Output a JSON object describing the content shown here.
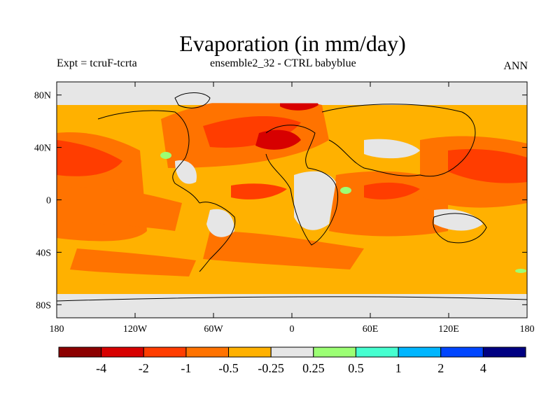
{
  "header": {
    "title": "Evaporation (in mm/day)",
    "left": "Expt = tcruF-tcrta",
    "center": "ensemble2_32 - CTRL babyblue",
    "right": "ANN"
  },
  "map": {
    "lat_ticks": [
      {
        "value": 80,
        "label": "80N"
      },
      {
        "value": 40,
        "label": "40N"
      },
      {
        "value": 0,
        "label": "0"
      },
      {
        "value": -40,
        "label": "40S"
      },
      {
        "value": -80,
        "label": "80S"
      }
    ],
    "lon_ticks": [
      {
        "value": -180,
        "label": "180"
      },
      {
        "value": -120,
        "label": "120W"
      },
      {
        "value": -60,
        "label": "60W"
      },
      {
        "value": 0,
        "label": "0"
      },
      {
        "value": 60,
        "label": "60E"
      },
      {
        "value": 120,
        "label": "120E"
      },
      {
        "value": 180,
        "label": "180"
      }
    ],
    "lon_range": [
      -180,
      180
    ],
    "lat_range": [
      -90,
      90
    ],
    "field_colors": {
      "ocean_base": "#ffb100",
      "strong_neg": "#ff7300",
      "very_strong_neg": "#ff3d00",
      "extreme_neg": "#d70000",
      "neutral": "#e6e6e6",
      "pos": "#9cff74"
    }
  },
  "colorbar": {
    "colors": [
      "#8c0000",
      "#d70000",
      "#ff3d00",
      "#ff7300",
      "#ffb100",
      "#e6e6e6",
      "#9cff74",
      "#46ffd0",
      "#00b6ff",
      "#0046ff",
      "#000082"
    ],
    "labels": [
      "-4",
      "-2",
      "-1",
      "-0.5",
      "-0.25",
      "0.25",
      "0.5",
      "1",
      "2",
      "4"
    ]
  }
}
